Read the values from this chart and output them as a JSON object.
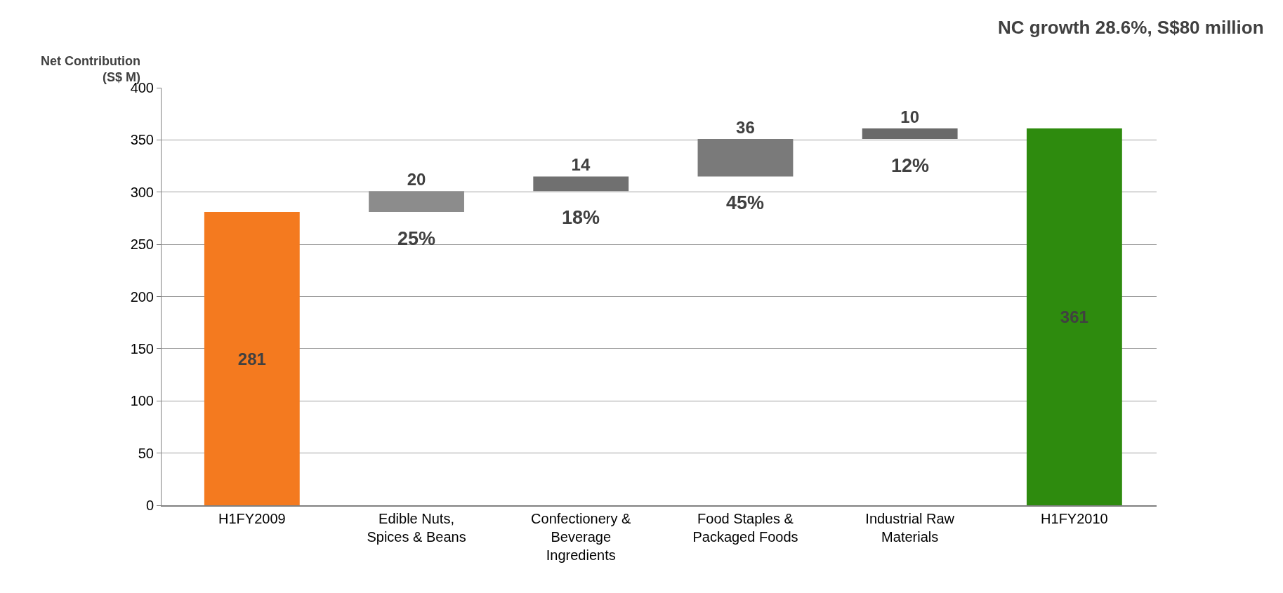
{
  "chart_data": {
    "type": "bar",
    "title": "NC growth 28.6%, S$80 million",
    "ylabel": "Net Contribution\n(S$ M)",
    "categories": [
      "H1FY2009",
      "Edible Nuts,\nSpices & Beans",
      "Confectionery &\nBeverage\nIngredients",
      "Food Staples &\nPackaged Foods",
      "Industrial Raw\nMaterials",
      "H1FY2010"
    ],
    "values": [
      281,
      20,
      14,
      36,
      10,
      361
    ],
    "base": [
      0,
      281,
      301,
      315,
      351,
      0
    ],
    "colors": [
      "#f47a1f",
      "#8c8c8c",
      "#707070",
      "#7a7a7a",
      "#6a6a6a",
      "#2e8b0e"
    ],
    "data_labels": true,
    "annotations": [
      "25%",
      "18%",
      "45%",
      "12%"
    ],
    "ylim": [
      0,
      400
    ],
    "yticks": [
      0,
      50,
      100,
      150,
      200,
      250,
      300,
      350,
      400
    ],
    "grid": "y"
  }
}
